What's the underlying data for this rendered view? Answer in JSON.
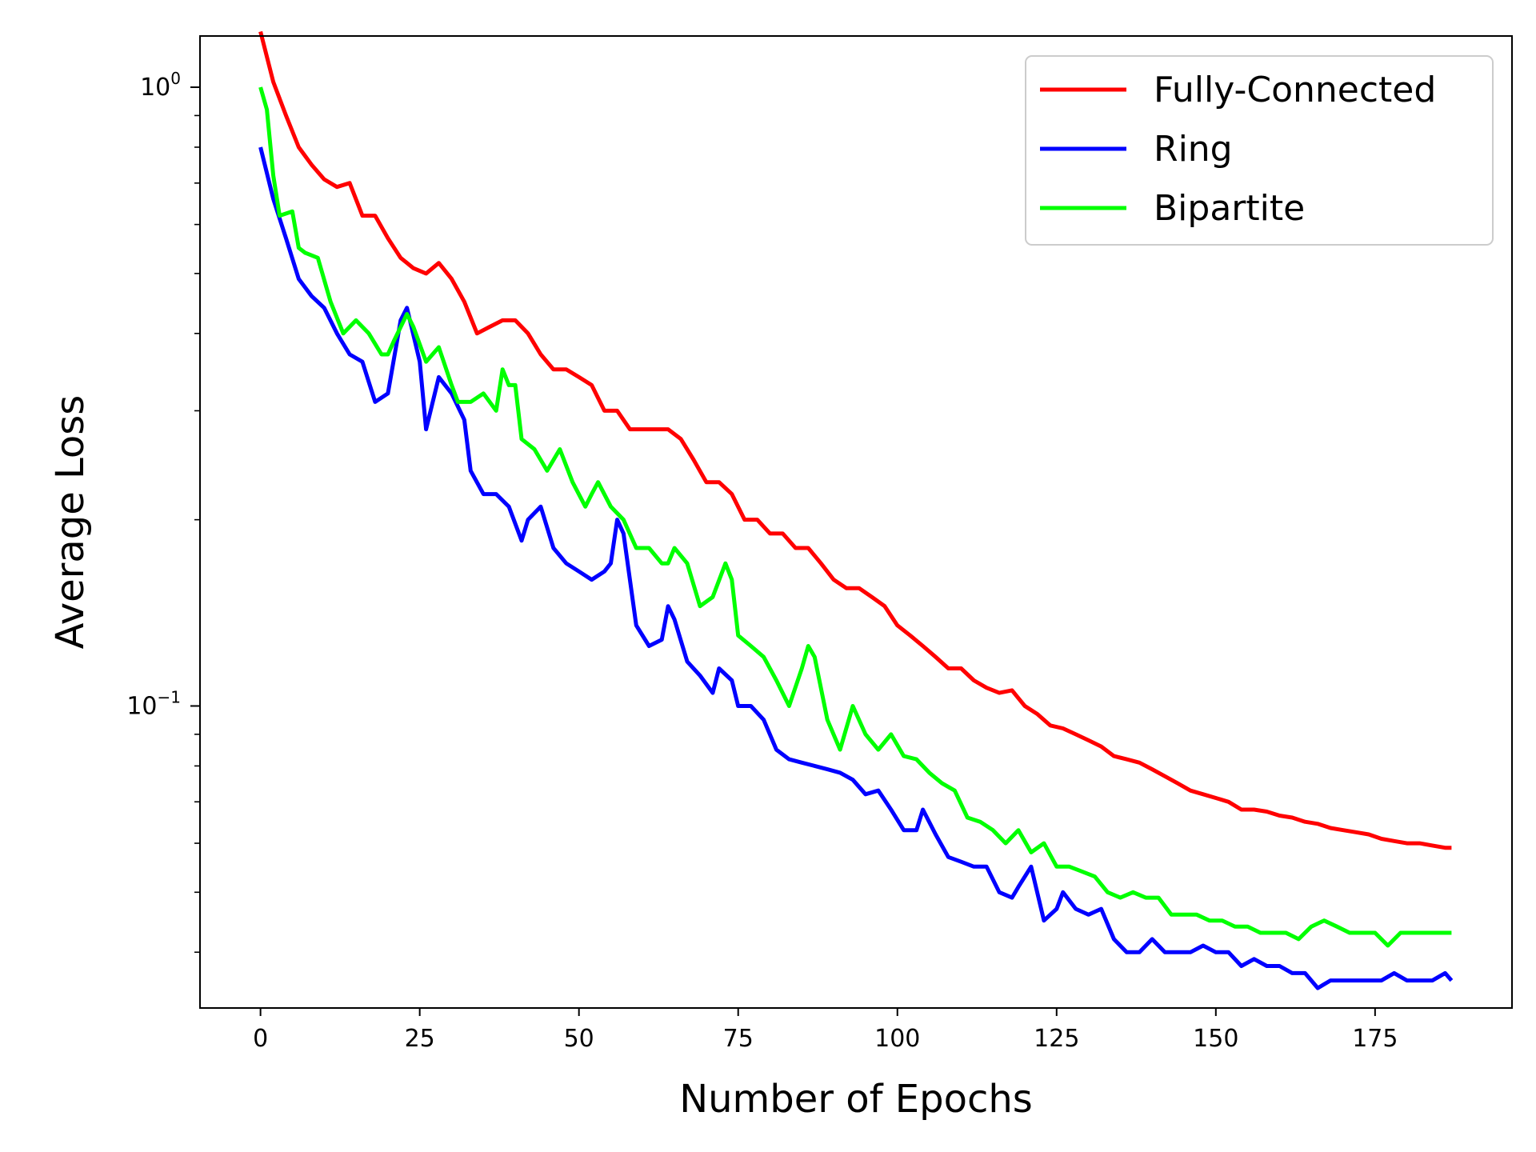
{
  "chart_data": {
    "type": "line",
    "xlabel": "Number of Epochs",
    "ylabel": "Average Loss",
    "xlim": [
      -9.5,
      196.5
    ],
    "ylim": [
      0.0325,
      1.21
    ],
    "yscale": "log",
    "grid": false,
    "legend_position": "top-right",
    "x_ticks": [
      0,
      25,
      50,
      75,
      100,
      125,
      150,
      175
    ],
    "x_tick_labels": [
      "0",
      "25",
      "50",
      "75",
      "100",
      "125",
      "150",
      "175"
    ],
    "y_major_ticks": [
      {
        "value": 1.0,
        "base": "10",
        "exp": "0"
      },
      {
        "value": 0.1,
        "base": "10",
        "exp": "−1"
      }
    ],
    "y_minor_ticks": [
      0.04,
      0.05,
      0.06,
      0.07,
      0.08,
      0.09,
      0.2,
      0.3,
      0.4,
      0.5,
      0.6,
      0.7,
      0.8,
      0.9
    ],
    "series": [
      {
        "name": "Fully-Connected",
        "color": "#ff0000",
        "x": [
          0,
          2,
          4,
          6,
          8,
          10,
          12,
          14,
          16,
          18,
          20,
          22,
          24,
          26,
          28,
          30,
          32,
          34,
          36,
          38,
          40,
          42,
          44,
          46,
          48,
          50,
          52,
          54,
          56,
          58,
          60,
          62,
          64,
          66,
          68,
          70,
          72,
          74,
          76,
          78,
          80,
          82,
          84,
          86,
          88,
          90,
          92,
          94,
          96,
          98,
          100,
          102,
          104,
          106,
          108,
          110,
          112,
          114,
          116,
          118,
          120,
          122,
          124,
          126,
          128,
          130,
          132,
          134,
          136,
          138,
          140,
          142,
          144,
          146,
          148,
          150,
          152,
          154,
          156,
          158,
          160,
          162,
          164,
          166,
          168,
          170,
          172,
          174,
          176,
          178,
          180,
          182,
          184,
          186,
          187
        ],
        "y": [
          1.23,
          1.02,
          0.9,
          0.8,
          0.75,
          0.71,
          0.69,
          0.7,
          0.62,
          0.62,
          0.57,
          0.53,
          0.51,
          0.5,
          0.52,
          0.49,
          0.45,
          0.4,
          0.41,
          0.42,
          0.42,
          0.4,
          0.37,
          0.35,
          0.35,
          0.34,
          0.33,
          0.3,
          0.3,
          0.28,
          0.28,
          0.28,
          0.28,
          0.27,
          0.25,
          0.23,
          0.23,
          0.22,
          0.2,
          0.2,
          0.19,
          0.19,
          0.18,
          0.18,
          0.17,
          0.16,
          0.155,
          0.155,
          0.15,
          0.145,
          0.135,
          0.13,
          0.125,
          0.12,
          0.115,
          0.115,
          0.11,
          0.107,
          0.105,
          0.106,
          0.1,
          0.097,
          0.093,
          0.092,
          0.09,
          0.088,
          0.086,
          0.083,
          0.082,
          0.081,
          0.079,
          0.077,
          0.075,
          0.073,
          0.072,
          0.071,
          0.07,
          0.068,
          0.068,
          0.0675,
          0.0665,
          0.066,
          0.065,
          0.0645,
          0.0635,
          0.063,
          0.0625,
          0.062,
          0.061,
          0.0605,
          0.06,
          0.06,
          0.0595,
          0.059,
          0.059
        ]
      },
      {
        "name": "Ring",
        "color": "#0000ff",
        "x": [
          0,
          2,
          4,
          6,
          8,
          10,
          12,
          14,
          16,
          18,
          20,
          22,
          23,
          25,
          26,
          28,
          30,
          32,
          33,
          35,
          37,
          39,
          41,
          42,
          44,
          46,
          48,
          50,
          52,
          54,
          55,
          56,
          57,
          59,
          61,
          63,
          64,
          65,
          67,
          69,
          71,
          72,
          74,
          75,
          77,
          79,
          81,
          83,
          85,
          87,
          89,
          91,
          93,
          95,
          97,
          99,
          101,
          103,
          104,
          106,
          108,
          110,
          112,
          114,
          116,
          118,
          119,
          121,
          123,
          125,
          126,
          128,
          130,
          132,
          134,
          136,
          138,
          140,
          142,
          144,
          146,
          148,
          150,
          152,
          154,
          156,
          158,
          160,
          162,
          164,
          166,
          168,
          170,
          172,
          174,
          176,
          178,
          180,
          182,
          184,
          186,
          187
        ],
        "y": [
          0.8,
          0.66,
          0.57,
          0.49,
          0.46,
          0.44,
          0.4,
          0.37,
          0.36,
          0.31,
          0.32,
          0.42,
          0.44,
          0.36,
          0.28,
          0.34,
          0.32,
          0.29,
          0.24,
          0.22,
          0.22,
          0.21,
          0.185,
          0.2,
          0.21,
          0.18,
          0.17,
          0.165,
          0.16,
          0.165,
          0.17,
          0.2,
          0.19,
          0.135,
          0.125,
          0.128,
          0.145,
          0.138,
          0.118,
          0.112,
          0.105,
          0.115,
          0.11,
          0.1,
          0.1,
          0.095,
          0.085,
          0.082,
          0.081,
          0.08,
          0.079,
          0.078,
          0.076,
          0.072,
          0.073,
          0.068,
          0.063,
          0.063,
          0.068,
          0.062,
          0.057,
          0.056,
          0.055,
          0.055,
          0.05,
          0.049,
          0.051,
          0.055,
          0.045,
          0.047,
          0.05,
          0.047,
          0.046,
          0.047,
          0.042,
          0.04,
          0.04,
          0.042,
          0.04,
          0.04,
          0.04,
          0.041,
          0.04,
          0.04,
          0.038,
          0.039,
          0.038,
          0.038,
          0.037,
          0.037,
          0.035,
          0.036,
          0.036,
          0.036,
          0.036,
          0.036,
          0.037,
          0.036,
          0.036,
          0.036,
          0.037,
          0.036
        ]
      },
      {
        "name": "Bipartite",
        "color": "#00ff00",
        "x": [
          0,
          1,
          2,
          3,
          5,
          6,
          7,
          9,
          11,
          13,
          15,
          17,
          19,
          20,
          21,
          23,
          24,
          26,
          28,
          30,
          31,
          33,
          35,
          37,
          38,
          39,
          40,
          41,
          43,
          45,
          47,
          49,
          51,
          52,
          53,
          55,
          57,
          59,
          61,
          63,
          64,
          65,
          67,
          69,
          71,
          73,
          74,
          75,
          77,
          79,
          81,
          83,
          85,
          86,
          87,
          89,
          91,
          93,
          95,
          97,
          99,
          101,
          103,
          105,
          107,
          109,
          111,
          113,
          115,
          117,
          119,
          121,
          123,
          125,
          127,
          129,
          131,
          133,
          135,
          137,
          139,
          141,
          143,
          145,
          147,
          149,
          151,
          153,
          155,
          157,
          159,
          161,
          163,
          165,
          167,
          169,
          171,
          173,
          175,
          177,
          179,
          181,
          183,
          185,
          187
        ],
        "y": [
          1.0,
          0.92,
          0.72,
          0.62,
          0.63,
          0.55,
          0.54,
          0.53,
          0.45,
          0.4,
          0.42,
          0.4,
          0.37,
          0.37,
          0.39,
          0.43,
          0.41,
          0.36,
          0.38,
          0.33,
          0.31,
          0.31,
          0.32,
          0.3,
          0.35,
          0.33,
          0.33,
          0.27,
          0.26,
          0.24,
          0.26,
          0.23,
          0.21,
          0.22,
          0.23,
          0.21,
          0.2,
          0.18,
          0.18,
          0.17,
          0.17,
          0.18,
          0.17,
          0.145,
          0.15,
          0.17,
          0.16,
          0.13,
          0.125,
          0.12,
          0.11,
          0.1,
          0.115,
          0.125,
          0.12,
          0.095,
          0.085,
          0.1,
          0.09,
          0.085,
          0.09,
          0.083,
          0.082,
          0.078,
          0.075,
          0.073,
          0.066,
          0.065,
          0.063,
          0.06,
          0.063,
          0.058,
          0.06,
          0.055,
          0.055,
          0.054,
          0.053,
          0.05,
          0.049,
          0.05,
          0.049,
          0.049,
          0.046,
          0.046,
          0.046,
          0.045,
          0.045,
          0.044,
          0.044,
          0.043,
          0.043,
          0.043,
          0.042,
          0.044,
          0.045,
          0.044,
          0.043,
          0.043,
          0.043,
          0.041,
          0.043,
          0.043,
          0.043,
          0.043,
          0.043
        ]
      }
    ]
  }
}
